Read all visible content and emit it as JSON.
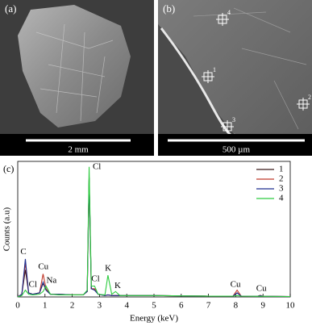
{
  "panels": {
    "a": {
      "label": "(a)",
      "scale": "2 mm"
    },
    "b": {
      "label": "(b)",
      "scale": "500 µm",
      "points": [
        "1",
        "2",
        "3",
        "4"
      ]
    }
  },
  "chart_data": {
    "type": "line",
    "label": "(c)",
    "xlabel": "Energy (keV)",
    "ylabel": "Counts (a.u)",
    "x": [
      0,
      0.15,
      0.28,
      0.4,
      0.55,
      0.8,
      0.93,
      1.04,
      1.2,
      1.5,
      2.0,
      2.4,
      2.55,
      2.62,
      2.7,
      2.82,
      2.95,
      3.2,
      3.31,
      3.45,
      3.59,
      3.75,
      4.0,
      5.0,
      6.0,
      7.0,
      7.9,
      8.05,
      8.2,
      8.8,
      8.9,
      9.0,
      10.0
    ],
    "xlim": [
      0,
      10
    ],
    "xticks": [
      0,
      1,
      2,
      3,
      4,
      5,
      6,
      7,
      8,
      9,
      10
    ],
    "ylim": [
      0,
      100
    ],
    "series": [
      {
        "name": "1",
        "color": "#3b1a1a",
        "values": [
          0,
          2,
          20,
          3,
          2,
          3,
          10,
          5,
          2,
          2,
          1.5,
          1.5,
          4,
          88,
          6,
          6,
          2,
          1,
          1.5,
          1,
          1,
          1,
          1,
          1,
          0.8,
          0.6,
          0.6,
          3,
          0.6,
          0.5,
          1,
          0.5,
          0.3
        ]
      },
      {
        "name": "2",
        "color": "#c0392b",
        "values": [
          0,
          2,
          25,
          3,
          2,
          3,
          17,
          6,
          2,
          2,
          1.5,
          1.5,
          4,
          88,
          6,
          6,
          2,
          1,
          1.5,
          1,
          1,
          1,
          1,
          1,
          0.8,
          0.6,
          0.6,
          5,
          0.6,
          0.5,
          1.2,
          0.5,
          0.3
        ]
      },
      {
        "name": "3",
        "color": "#1f2f8f",
        "values": [
          0,
          2,
          28,
          3,
          2,
          3,
          11,
          5,
          2,
          2,
          1.5,
          1.5,
          4,
          88,
          6,
          5,
          2,
          1,
          1.5,
          1,
          1,
          1,
          1,
          1,
          0.8,
          0.6,
          0.6,
          3,
          0.6,
          0.5,
          1,
          0.5,
          0.3
        ]
      },
      {
        "name": "4",
        "color": "#2ecc40",
        "values": [
          0,
          1,
          5,
          2,
          1.5,
          2,
          4,
          8,
          2,
          1.5,
          1.5,
          1.5,
          5,
          96,
          8,
          8,
          2,
          1.5,
          16,
          2,
          4,
          1,
          1,
          1,
          0.8,
          0.6,
          0.6,
          1,
          0.6,
          0.5,
          0.5,
          0.5,
          0.3
        ]
      }
    ],
    "legend": "upper right",
    "annotations": [
      {
        "text": "C",
        "x": 0.1,
        "y": 33
      },
      {
        "text": "Cl",
        "x": 0.4,
        "y": 9
      },
      {
        "text": "Cu",
        "x": 0.75,
        "y": 22
      },
      {
        "text": "Na",
        "x": 1.05,
        "y": 12
      },
      {
        "text": "Cl",
        "x": 2.75,
        "y": 96
      },
      {
        "text": "Cl",
        "x": 2.7,
        "y": 13
      },
      {
        "text": "K",
        "x": 3.2,
        "y": 21
      },
      {
        "text": "K",
        "x": 3.55,
        "y": 8
      },
      {
        "text": "Cu",
        "x": 7.8,
        "y": 9
      },
      {
        "text": "Cu",
        "x": 8.75,
        "y": 6
      }
    ]
  }
}
